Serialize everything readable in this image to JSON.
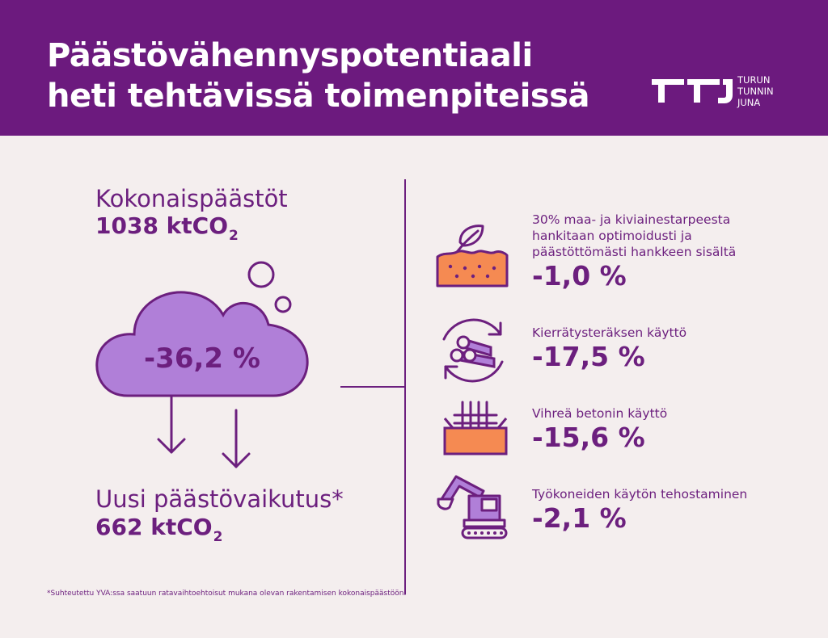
{
  "header": {
    "title_line1": "Päästövähennyspotentiaali",
    "title_line2": "heti tehtävissä toimenpiteissä",
    "logo": {
      "line1": "TURUN",
      "line2": "TUNNIN",
      "line3": "JUNA"
    }
  },
  "left": {
    "total_label": "Kokonaispäästöt",
    "total_value": "1038 ktCO",
    "total_sub": "2",
    "reduction": "-36,2 %",
    "new_label": "Uusi päästövaikutus*",
    "new_value": "662 ktCO",
    "new_sub": "2"
  },
  "measures": [
    {
      "icon": "leaf-soil-icon",
      "label_lines": [
        "30% maa- ja kiviainestarpeesta",
        "hankitaan optimoidusti ja",
        "päästöttömästi hankkeen sisältä"
      ],
      "value": "-1,0 %"
    },
    {
      "icon": "recycled-steel-icon",
      "label_lines": [
        "Kierrätysteräksen käyttö"
      ],
      "value": "-17,5 %"
    },
    {
      "icon": "green-concrete-icon",
      "label_lines": [
        "Vihreä betonin käyttö"
      ],
      "value": "-15,6 %"
    },
    {
      "icon": "excavator-icon",
      "label_lines": [
        "Työkoneiden käytön tehostaminen"
      ],
      "value": "-2,1 %"
    }
  ],
  "footnote": "*Suhteutettu YVA:ssa saatuun ratavaihtoehtoisut mukana olevan rakentamisen kokonaispäästöön.",
  "colors": {
    "purple": "#6c1a7e",
    "lavender": "#b07fd8",
    "orange": "#f58a52",
    "background": "#f4eeee"
  }
}
